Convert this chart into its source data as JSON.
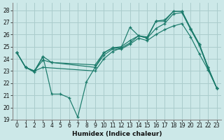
{
  "xlabel": "Humidex (Indice chaleur)",
  "bg_color": "#cce8e8",
  "grid_color": "#aacccc",
  "line_color": "#1a7a6a",
  "xlim": [
    -0.5,
    23.5
  ],
  "ylim": [
    19,
    28.6
  ],
  "yticks": [
    19,
    20,
    21,
    22,
    23,
    24,
    25,
    26,
    27,
    28
  ],
  "xticks": [
    0,
    1,
    2,
    3,
    4,
    5,
    6,
    7,
    8,
    9,
    10,
    11,
    12,
    13,
    14,
    15,
    16,
    17,
    18,
    19,
    20,
    21,
    22,
    23
  ],
  "line1_x": [
    0,
    1,
    2,
    3,
    4,
    5,
    6,
    7,
    8,
    9,
    10,
    11,
    12,
    13,
    14,
    15,
    16,
    17,
    18,
    19,
    20,
    21,
    22,
    23
  ],
  "line1_y": [
    24.5,
    23.3,
    22.9,
    24.2,
    21.1,
    21.1,
    20.8,
    19.2,
    22.1,
    23.3,
    24.5,
    24.9,
    24.9,
    26.6,
    25.9,
    25.7,
    27.1,
    27.1,
    27.9,
    27.9,
    26.5,
    25.2,
    23.3,
    21.6
  ],
  "line2_x": [
    0,
    1,
    2,
    3,
    4,
    9,
    10,
    11,
    12,
    13,
    14,
    15,
    16,
    17,
    18,
    19,
    20,
    21,
    22,
    23
  ],
  "line2_y": [
    24.5,
    23.3,
    23.0,
    23.9,
    23.7,
    23.5,
    24.5,
    24.9,
    25.0,
    25.5,
    25.9,
    25.8,
    27.1,
    27.2,
    27.9,
    27.9,
    26.5,
    25.2,
    23.3,
    21.6
  ],
  "line3_x": [
    0,
    1,
    2,
    3,
    4,
    9,
    10,
    11,
    12,
    13,
    14,
    15,
    16,
    17,
    18,
    19,
    20,
    21,
    22,
    23
  ],
  "line3_y": [
    24.5,
    23.3,
    23.0,
    24.2,
    23.7,
    23.3,
    24.3,
    24.8,
    24.8,
    25.2,
    25.7,
    25.5,
    26.0,
    26.4,
    26.7,
    26.9,
    25.8,
    24.4,
    23.1,
    21.6
  ],
  "line4_x": [
    0,
    1,
    2,
    3,
    9,
    10,
    11,
    12,
    13,
    14,
    15,
    16,
    17,
    18,
    19,
    20,
    21,
    22,
    23
  ],
  "line4_y": [
    24.5,
    23.3,
    23.0,
    23.3,
    23.0,
    24.0,
    24.6,
    24.9,
    25.3,
    25.9,
    25.7,
    26.5,
    26.9,
    27.7,
    27.8,
    26.4,
    25.1,
    23.2,
    21.6
  ]
}
